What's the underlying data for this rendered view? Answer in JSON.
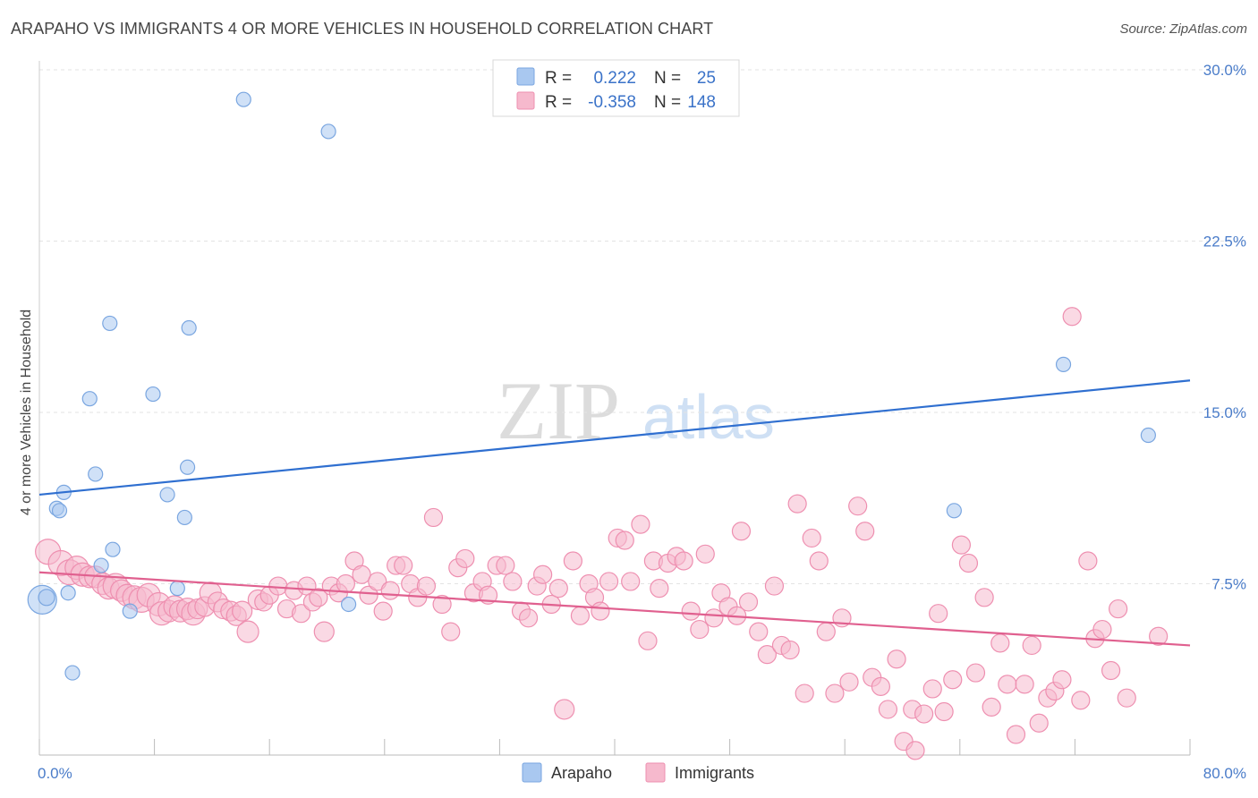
{
  "header": {
    "title": "ARAPAHO VS IMMIGRANTS 4 OR MORE VEHICLES IN HOUSEHOLD CORRELATION CHART",
    "source": "Source: ZipAtlas.com"
  },
  "watermark": {
    "zip": "ZIP",
    "atlas": "atlas"
  },
  "colors": {
    "arapaho_fill": "#a9c8f0",
    "arapaho_stroke": "#7aa6e0",
    "arapaho_line": "#2f6fd0",
    "immigrants_fill": "#f6b9cd",
    "immigrants_stroke": "#ee8fb0",
    "immigrants_line": "#e0608f",
    "tick_label": "#4a7cc9",
    "grid": "#e3e3e3"
  },
  "legend": {
    "rows": [
      {
        "r_label": "R =",
        "r_value": "0.222",
        "n_label": "N =",
        "n_value": "25"
      },
      {
        "r_label": "R =",
        "r_value": "-0.358",
        "n_label": "N =",
        "n_value": "148"
      }
    ]
  },
  "bottom_legend": [
    "Arapaho",
    "Immigrants"
  ],
  "chart_data": {
    "type": "scatter",
    "title": "ARAPAHO VS IMMIGRANTS 4 OR MORE VEHICLES IN HOUSEHOLD CORRELATION CHART",
    "xlabel": "",
    "ylabel": "4 or more Vehicles in Household",
    "xlim": [
      0,
      80
    ],
    "ylim": [
      0,
      30
    ],
    "x_tick_labels": [
      "0.0%",
      "80.0%"
    ],
    "y_ticks": [
      7.5,
      15.0,
      22.5,
      30.0
    ],
    "y_tick_labels": [
      "7.5%",
      "15.0%",
      "22.5%",
      "30.0%"
    ],
    "grid": true,
    "legend_position": "top-center",
    "series": [
      {
        "name": "Arapaho",
        "trend": {
          "x": [
            0,
            80
          ],
          "y": [
            11.4,
            16.4
          ]
        },
        "points": [
          [
            0.2,
            6.8,
            16
          ],
          [
            0.5,
            6.9,
            9
          ],
          [
            1.2,
            10.8,
            8
          ],
          [
            1.4,
            10.7,
            8
          ],
          [
            1.7,
            11.5,
            8
          ],
          [
            2.0,
            7.1,
            8
          ],
          [
            2.3,
            3.6,
            8
          ],
          [
            3.5,
            15.6,
            8
          ],
          [
            3.9,
            12.3,
            8
          ],
          [
            4.3,
            8.3,
            8
          ],
          [
            4.9,
            18.9,
            8
          ],
          [
            5.1,
            9.0,
            8
          ],
          [
            6.3,
            6.3,
            8
          ],
          [
            7.9,
            15.8,
            8
          ],
          [
            8.9,
            11.4,
            8
          ],
          [
            9.6,
            7.3,
            8
          ],
          [
            10.1,
            10.4,
            8
          ],
          [
            10.3,
            12.6,
            8
          ],
          [
            10.4,
            18.7,
            8
          ],
          [
            14.2,
            28.7,
            8
          ],
          [
            20.1,
            27.3,
            8
          ],
          [
            21.5,
            6.6,
            8
          ],
          [
            63.6,
            10.7,
            8
          ],
          [
            71.2,
            17.1,
            8
          ],
          [
            77.1,
            14.0,
            8
          ]
        ]
      },
      {
        "name": "Immigrants",
        "trend": {
          "x": [
            0,
            80
          ],
          "y": [
            8.0,
            4.8
          ]
        },
        "points": [
          [
            0.6,
            8.9,
            14
          ],
          [
            1.5,
            8.4,
            14
          ],
          [
            2.1,
            8.0,
            14
          ],
          [
            2.6,
            8.2,
            13
          ],
          [
            3.0,
            7.9,
            13
          ],
          [
            3.5,
            7.8,
            12
          ],
          [
            3.9,
            7.8,
            12
          ],
          [
            4.4,
            7.5,
            12
          ],
          [
            4.8,
            7.3,
            12
          ],
          [
            5.3,
            7.4,
            14
          ],
          [
            5.7,
            7.2,
            12
          ],
          [
            6.1,
            7.0,
            12
          ],
          [
            6.6,
            6.9,
            13
          ],
          [
            7.1,
            6.8,
            14
          ],
          [
            7.6,
            7.0,
            13
          ],
          [
            8.3,
            6.6,
            13
          ],
          [
            8.5,
            6.2,
            13
          ],
          [
            9.0,
            6.3,
            12
          ],
          [
            9.4,
            6.5,
            12
          ],
          [
            9.8,
            6.3,
            12
          ],
          [
            10.3,
            6.4,
            12
          ],
          [
            10.7,
            6.2,
            13
          ],
          [
            11.0,
            6.4,
            11
          ],
          [
            11.5,
            6.5,
            11
          ],
          [
            11.9,
            7.1,
            12
          ],
          [
            12.4,
            6.7,
            11
          ],
          [
            12.8,
            6.4,
            11
          ],
          [
            13.3,
            6.3,
            11
          ],
          [
            13.7,
            6.1,
            11
          ],
          [
            14.1,
            6.3,
            11
          ],
          [
            14.5,
            5.4,
            12
          ],
          [
            15.2,
            6.8,
            11
          ],
          [
            15.6,
            6.7,
            10
          ],
          [
            16.0,
            7.0,
            10
          ],
          [
            16.6,
            7.4,
            10
          ],
          [
            17.2,
            6.4,
            10
          ],
          [
            17.7,
            7.2,
            10
          ],
          [
            18.2,
            6.2,
            10
          ],
          [
            18.6,
            7.4,
            10
          ],
          [
            19.0,
            6.7,
            10
          ],
          [
            19.4,
            6.9,
            10
          ],
          [
            19.8,
            5.4,
            11
          ],
          [
            20.3,
            7.4,
            10
          ],
          [
            20.8,
            7.1,
            10
          ],
          [
            21.3,
            7.5,
            10
          ],
          [
            21.9,
            8.5,
            10
          ],
          [
            22.4,
            7.9,
            10
          ],
          [
            22.9,
            7.0,
            10
          ],
          [
            23.5,
            7.6,
            10
          ],
          [
            23.9,
            6.3,
            10
          ],
          [
            24.4,
            7.2,
            10
          ],
          [
            24.8,
            8.3,
            10
          ],
          [
            25.3,
            8.3,
            10
          ],
          [
            25.8,
            7.5,
            10
          ],
          [
            26.3,
            6.9,
            10
          ],
          [
            26.9,
            7.4,
            10
          ],
          [
            27.4,
            10.4,
            10
          ],
          [
            28.0,
            6.6,
            10
          ],
          [
            28.6,
            5.4,
            10
          ],
          [
            29.1,
            8.2,
            10
          ],
          [
            29.6,
            8.6,
            10
          ],
          [
            30.2,
            7.1,
            10
          ],
          [
            30.8,
            7.6,
            10
          ],
          [
            31.2,
            7.0,
            10
          ],
          [
            31.8,
            8.3,
            10
          ],
          [
            32.4,
            8.3,
            10
          ],
          [
            32.9,
            7.6,
            10
          ],
          [
            33.5,
            6.3,
            10
          ],
          [
            34.0,
            6.0,
            10
          ],
          [
            34.6,
            7.4,
            10
          ],
          [
            35.0,
            7.9,
            10
          ],
          [
            35.6,
            6.6,
            10
          ],
          [
            36.1,
            7.3,
            10
          ],
          [
            36.5,
            2.0,
            11
          ],
          [
            37.1,
            8.5,
            10
          ],
          [
            37.6,
            6.1,
            10
          ],
          [
            38.2,
            7.5,
            10
          ],
          [
            38.6,
            6.9,
            10
          ],
          [
            39.0,
            6.3,
            10
          ],
          [
            39.6,
            7.6,
            10
          ],
          [
            40.2,
            9.5,
            10
          ],
          [
            40.7,
            9.4,
            10
          ],
          [
            41.1,
            7.6,
            10
          ],
          [
            41.8,
            10.1,
            10
          ],
          [
            42.3,
            5.0,
            10
          ],
          [
            42.7,
            8.5,
            10
          ],
          [
            43.1,
            7.3,
            10
          ],
          [
            43.7,
            8.4,
            10
          ],
          [
            44.3,
            8.7,
            10
          ],
          [
            44.8,
            8.5,
            10
          ],
          [
            45.3,
            6.3,
            10
          ],
          [
            45.9,
            5.5,
            10
          ],
          [
            46.3,
            8.8,
            10
          ],
          [
            46.9,
            6.0,
            10
          ],
          [
            47.4,
            7.1,
            10
          ],
          [
            47.9,
            6.5,
            10
          ],
          [
            48.5,
            6.1,
            10
          ],
          [
            48.8,
            9.8,
            10
          ],
          [
            49.3,
            6.7,
            10
          ],
          [
            50.0,
            5.4,
            10
          ],
          [
            50.6,
            4.4,
            10
          ],
          [
            51.1,
            7.4,
            10
          ],
          [
            51.6,
            4.8,
            10
          ],
          [
            52.2,
            4.6,
            10
          ],
          [
            52.7,
            11.0,
            10
          ],
          [
            53.2,
            2.7,
            10
          ],
          [
            53.7,
            9.5,
            10
          ],
          [
            54.2,
            8.5,
            10
          ],
          [
            54.7,
            5.4,
            10
          ],
          [
            55.3,
            2.7,
            10
          ],
          [
            55.8,
            6.0,
            10
          ],
          [
            56.3,
            3.2,
            10
          ],
          [
            56.9,
            10.9,
            10
          ],
          [
            57.4,
            9.8,
            10
          ],
          [
            57.9,
            3.4,
            10
          ],
          [
            58.5,
            3.0,
            10
          ],
          [
            59.0,
            2.0,
            10
          ],
          [
            59.6,
            4.2,
            10
          ],
          [
            60.1,
            0.6,
            10
          ],
          [
            60.7,
            2.0,
            10
          ],
          [
            60.9,
            0.2,
            10
          ],
          [
            61.5,
            1.8,
            10
          ],
          [
            62.1,
            2.9,
            10
          ],
          [
            62.5,
            6.2,
            10
          ],
          [
            62.9,
            1.9,
            10
          ],
          [
            63.5,
            3.3,
            10
          ],
          [
            64.1,
            9.2,
            10
          ],
          [
            64.6,
            8.4,
            10
          ],
          [
            65.1,
            3.6,
            10
          ],
          [
            65.7,
            6.9,
            10
          ],
          [
            66.2,
            2.1,
            10
          ],
          [
            66.8,
            4.9,
            10
          ],
          [
            67.3,
            3.1,
            10
          ],
          [
            67.9,
            0.9,
            10
          ],
          [
            68.5,
            3.1,
            10
          ],
          [
            69.0,
            4.8,
            10
          ],
          [
            69.5,
            1.4,
            10
          ],
          [
            70.1,
            2.5,
            10
          ],
          [
            70.6,
            2.8,
            10
          ],
          [
            71.1,
            3.3,
            10
          ],
          [
            71.8,
            19.2,
            10
          ],
          [
            72.4,
            2.4,
            10
          ],
          [
            72.9,
            8.5,
            10
          ],
          [
            73.4,
            5.1,
            10
          ],
          [
            73.9,
            5.5,
            10
          ],
          [
            74.5,
            3.7,
            10
          ],
          [
            75.0,
            6.4,
            10
          ],
          [
            75.6,
            2.5,
            10
          ],
          [
            77.8,
            5.2,
            10
          ]
        ]
      }
    ]
  }
}
